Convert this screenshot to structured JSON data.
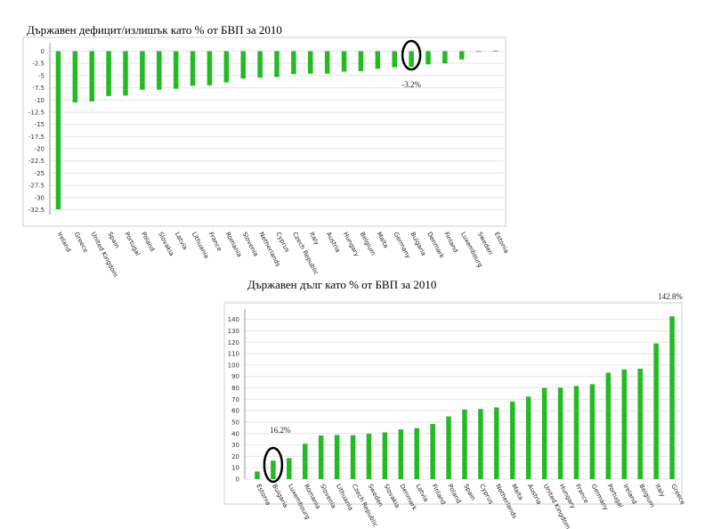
{
  "chart_data": [
    {
      "type": "bar",
      "title": "Държавен дефицит/излишък като % от БВП за 2010",
      "categories": [
        "Ireland",
        "Greece",
        "United Kingdom",
        "Spain",
        "Portugal",
        "Poland",
        "Slovakia",
        "Latvia",
        "Lithuania",
        "France",
        "Romania",
        "Slovenia",
        "Netherlands",
        "Cyprus",
        "Czech Republic",
        "Italy",
        "Austria",
        "Hungary",
        "Belgium",
        "Malta",
        "Germany",
        "Bulgaria",
        "Denmark",
        "Finland",
        "Luxembourg",
        "Sweden",
        "Estonia"
      ],
      "values": [
        -32.4,
        -10.5,
        -10.3,
        -9.2,
        -9.1,
        -7.9,
        -7.9,
        -7.7,
        -7.1,
        -7.0,
        -6.4,
        -5.6,
        -5.4,
        -5.3,
        -4.7,
        -4.6,
        -4.6,
        -4.2,
        -4.1,
        -3.6,
        -3.3,
        -3.2,
        -2.7,
        -2.5,
        -1.7,
        0.0,
        0.1
      ],
      "yticks": [
        "0",
        "-2.5",
        "-5",
        "-7.5",
        "-10",
        "-12.5",
        "-15",
        "-17.5",
        "-20",
        "-22.5",
        "-25",
        "-27.5",
        "-30",
        "-32.5"
      ],
      "ylim": [
        -33.5,
        1
      ],
      "highlight": "Bulgaria",
      "annotation": "-3.2%",
      "bar_color": "#22bb22",
      "grid": true
    },
    {
      "type": "bar",
      "title": "Държавен дълг като % от БВП за 2010",
      "categories": [
        "Estonia",
        "Bulgaria",
        "Luxembourg",
        "Romania",
        "Slovenia",
        "Lithuania",
        "Czech Republic",
        "Sweden",
        "Slovakia",
        "Denmark",
        "Latvia",
        "Finland",
        "Poland",
        "Spain",
        "Cyprus",
        "Netherlands",
        "Malta",
        "Austria",
        "United Kingdom",
        "Hungary",
        "France",
        "Germany",
        "Portugal",
        "Ireland",
        "Belgium",
        "Italy",
        "Greece"
      ],
      "values": [
        6.7,
        16.2,
        18.4,
        31.0,
        38.2,
        38.7,
        38.5,
        39.8,
        41.0,
        43.6,
        44.7,
        48.4,
        55.0,
        61.0,
        61.5,
        62.9,
        68.0,
        72.3,
        80.0,
        80.2,
        81.7,
        83.2,
        93.3,
        96.2,
        96.8,
        119.0,
        142.8
      ],
      "yticks": [
        "0",
        "10",
        "20",
        "30",
        "40",
        "50",
        "60",
        "70",
        "80",
        "90",
        "100",
        "110",
        "120",
        "130",
        "140"
      ],
      "ylim": [
        0,
        146
      ],
      "highlight": "Bulgaria",
      "annotations": [
        "16.2%",
        "142.8%"
      ],
      "bar_color": "#22bb22",
      "grid": true
    }
  ]
}
